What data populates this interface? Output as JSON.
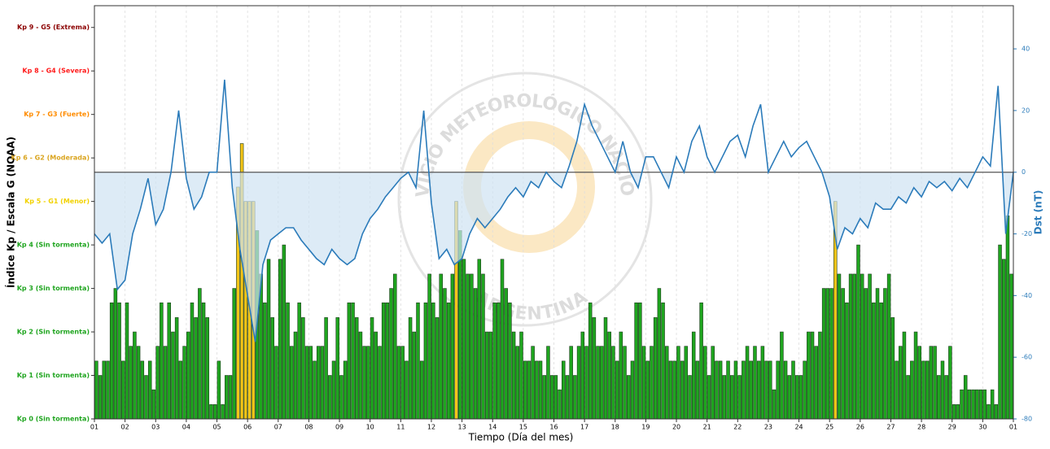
{
  "chart_data": {
    "type": "bar",
    "ylabel": "Índice Kp / Escala G (NOAA)",
    "y2label": "Dst (nT)",
    "xlabel": "Tiempo (Día del mes)",
    "watermark": [
      "SERVICIO METEOROLÓGICO NACIONAL",
      "ARGENTINA"
    ],
    "xlim": [
      0,
      30
    ],
    "xticks": [
      {
        "value": 0,
        "label": "01"
      },
      {
        "value": 1,
        "label": "02"
      },
      {
        "value": 2,
        "label": "03"
      },
      {
        "value": 3,
        "label": "04"
      },
      {
        "value": 4,
        "label": "05"
      },
      {
        "value": 5,
        "label": "06"
      },
      {
        "value": 6,
        "label": "07"
      },
      {
        "value": 7,
        "label": "08"
      },
      {
        "value": 8,
        "label": "09"
      },
      {
        "value": 9,
        "label": "10"
      },
      {
        "value": 10,
        "label": "11"
      },
      {
        "value": 11,
        "label": "12"
      },
      {
        "value": 12,
        "label": "13"
      },
      {
        "value": 13,
        "label": "14"
      },
      {
        "value": 14,
        "label": "15"
      },
      {
        "value": 15,
        "label": "16"
      },
      {
        "value": 16,
        "label": "17"
      },
      {
        "value": 17,
        "label": "18"
      },
      {
        "value": 18,
        "label": "19"
      },
      {
        "value": 19,
        "label": "20"
      },
      {
        "value": 20,
        "label": "21"
      },
      {
        "value": 21,
        "label": "22"
      },
      {
        "value": 22,
        "label": "23"
      },
      {
        "value": 23,
        "label": "24"
      },
      {
        "value": 24,
        "label": "25"
      },
      {
        "value": 25,
        "label": "26"
      },
      {
        "value": 26,
        "label": "27"
      },
      {
        "value": 27,
        "label": "28"
      },
      {
        "value": 28,
        "label": "29"
      },
      {
        "value": 29,
        "label": "30"
      },
      {
        "value": 30,
        "label": "01"
      }
    ],
    "ylim": [
      0,
      9.5
    ],
    "yticks": [
      {
        "value": 0,
        "label": "Kp 0 (Sin tormenta)",
        "color": "#1fa51f"
      },
      {
        "value": 1,
        "label": "Kp 1 (Sin tormenta)",
        "color": "#1fa51f"
      },
      {
        "value": 2,
        "label": "Kp 2 (Sin tormenta)",
        "color": "#1fa51f"
      },
      {
        "value": 3,
        "label": "Kp 3 (Sin tormenta)",
        "color": "#1fa51f"
      },
      {
        "value": 4,
        "label": "Kp 4 (Sin tormenta)",
        "color": "#1fa51f"
      },
      {
        "value": 5,
        "label": "Kp 5 - G1 (Menor)",
        "color": "#f2d200"
      },
      {
        "value": 6,
        "label": "Kp 6 - G2 (Moderada)",
        "color": "#daa520"
      },
      {
        "value": 7,
        "label": "Kp 7 - G3 (Fuerte)",
        "color": "#ff8c00"
      },
      {
        "value": 8,
        "label": "Kp 8 - G4 (Severa)",
        "color": "#ff1a1a"
      },
      {
        "value": 9,
        "label": "Kp 9 - G5 (Extrema)",
        "color": "#8b0000"
      }
    ],
    "y2lim": [
      -80,
      54
    ],
    "y2ticks": [
      -80,
      -60,
      -40,
      -20,
      0,
      20,
      40
    ],
    "grid": true,
    "series": [
      {
        "type": "bar",
        "color": "#1fa51f",
        "storm_color": "#f5c518",
        "storm_from": 5,
        "values": [
          1.33,
          1,
          1.33,
          1.33,
          2.67,
          3,
          2.67,
          1.33,
          2.67,
          1.67,
          2,
          1.67,
          1.33,
          1,
          1.33,
          0.67,
          1.67,
          2.67,
          1.67,
          2.67,
          2,
          2.33,
          1.33,
          1.67,
          2,
          2.67,
          2.33,
          3,
          2.67,
          2.33,
          0.33,
          0.33,
          1.33,
          0.33,
          1,
          1,
          3,
          5.33,
          6.33,
          5,
          5,
          5,
          4.33,
          3.33,
          2.67,
          3.67,
          2.33,
          1.67,
          3.67,
          4,
          2.67,
          1.67,
          2,
          2.67,
          2.33,
          1.67,
          1.67,
          1.33,
          1.67,
          1.67,
          2.33,
          1,
          1.33,
          2.33,
          1,
          1.33,
          2.67,
          2.67,
          2.33,
          2,
          1.67,
          1.67,
          2.33,
          2,
          1.67,
          2.67,
          2.67,
          3,
          3.33,
          1.67,
          1.67,
          1.33,
          2.33,
          2,
          2.67,
          1.33,
          2.67,
          3.33,
          2.67,
          2.33,
          3.33,
          3,
          2.67,
          3.33,
          5,
          4.33,
          3.67,
          3.33,
          3.33,
          3,
          3.67,
          3.33,
          2,
          2,
          2.67,
          2.67,
          3.67,
          3,
          2.67,
          2,
          1.67,
          2,
          1.33,
          1.33,
          1.67,
          1.33,
          1.33,
          1,
          1.67,
          1,
          1,
          0.67,
          1.33,
          1,
          1.67,
          1,
          1.67,
          2,
          1.67,
          2.67,
          2.33,
          1.67,
          1.67,
          2.33,
          2,
          1.67,
          1.33,
          2,
          1.67,
          1,
          1.33,
          2.67,
          2.67,
          1.67,
          1.33,
          1.67,
          2.33,
          3,
          2.67,
          1.67,
          1.33,
          1.33,
          1.67,
          1.33,
          1.67,
          1,
          2,
          1.33,
          2.67,
          1.67,
          1,
          1.67,
          1.33,
          1.33,
          1,
          1.33,
          1,
          1.33,
          1,
          1.33,
          1.67,
          1.33,
          1.67,
          1.33,
          1.67,
          1.33,
          1.33,
          0.67,
          1.33,
          2,
          1.33,
          1,
          1.33,
          1,
          1,
          1.33,
          2,
          2,
          1.67,
          2,
          3,
          3,
          3,
          5,
          3.33,
          3,
          2.67,
          3.33,
          3.33,
          4,
          3.33,
          3,
          3.33,
          2.67,
          3,
          2.67,
          3,
          3.33,
          2.33,
          1.33,
          1.67,
          2,
          1,
          1.33,
          2,
          1.67,
          1.33,
          1.33,
          1.67,
          1.67,
          1,
          1.33,
          1,
          1.67,
          0.33,
          0.33,
          0.67,
          1,
          0.67,
          0.67,
          0.67,
          0.67,
          0.67,
          0.33,
          0.67,
          0.33,
          4,
          3.67,
          4.67,
          3.33
        ]
      },
      {
        "type": "line",
        "axis": "y2",
        "color": "#2b7bba",
        "fill": "#cfe3f2",
        "baseline_color": "#555555",
        "values": [
          -20,
          -23,
          -20,
          -38,
          -35,
          -20,
          -12,
          -2,
          -17,
          -12,
          0,
          20,
          -2,
          -12,
          -8,
          0,
          0,
          30,
          -5,
          -25,
          -40,
          -55,
          -30,
          -22,
          -20,
          -18,
          -18,
          -22,
          -25,
          -28,
          -30,
          -25,
          -28,
          -30,
          -28,
          -20,
          -15,
          -12,
          -8,
          -5,
          -2,
          0,
          -5,
          20,
          -10,
          -28,
          -25,
          -30,
          -28,
          -20,
          -15,
          -18,
          -15,
          -12,
          -8,
          -5,
          -8,
          -3,
          -5,
          0,
          -3,
          -5,
          2,
          10,
          22,
          15,
          10,
          5,
          0,
          10,
          0,
          -5,
          5,
          5,
          0,
          -5,
          5,
          0,
          10,
          15,
          5,
          0,
          5,
          10,
          12,
          5,
          15,
          22,
          0,
          5,
          10,
          5,
          8,
          10,
          5,
          0,
          -8,
          -25,
          -18,
          -20,
          -15,
          -18,
          -10,
          -12,
          -12,
          -8,
          -10,
          -5,
          -8,
          -3,
          -5,
          -3,
          -6,
          -2,
          -5,
          0,
          5,
          2,
          28,
          -20,
          0
        ]
      }
    ]
  }
}
